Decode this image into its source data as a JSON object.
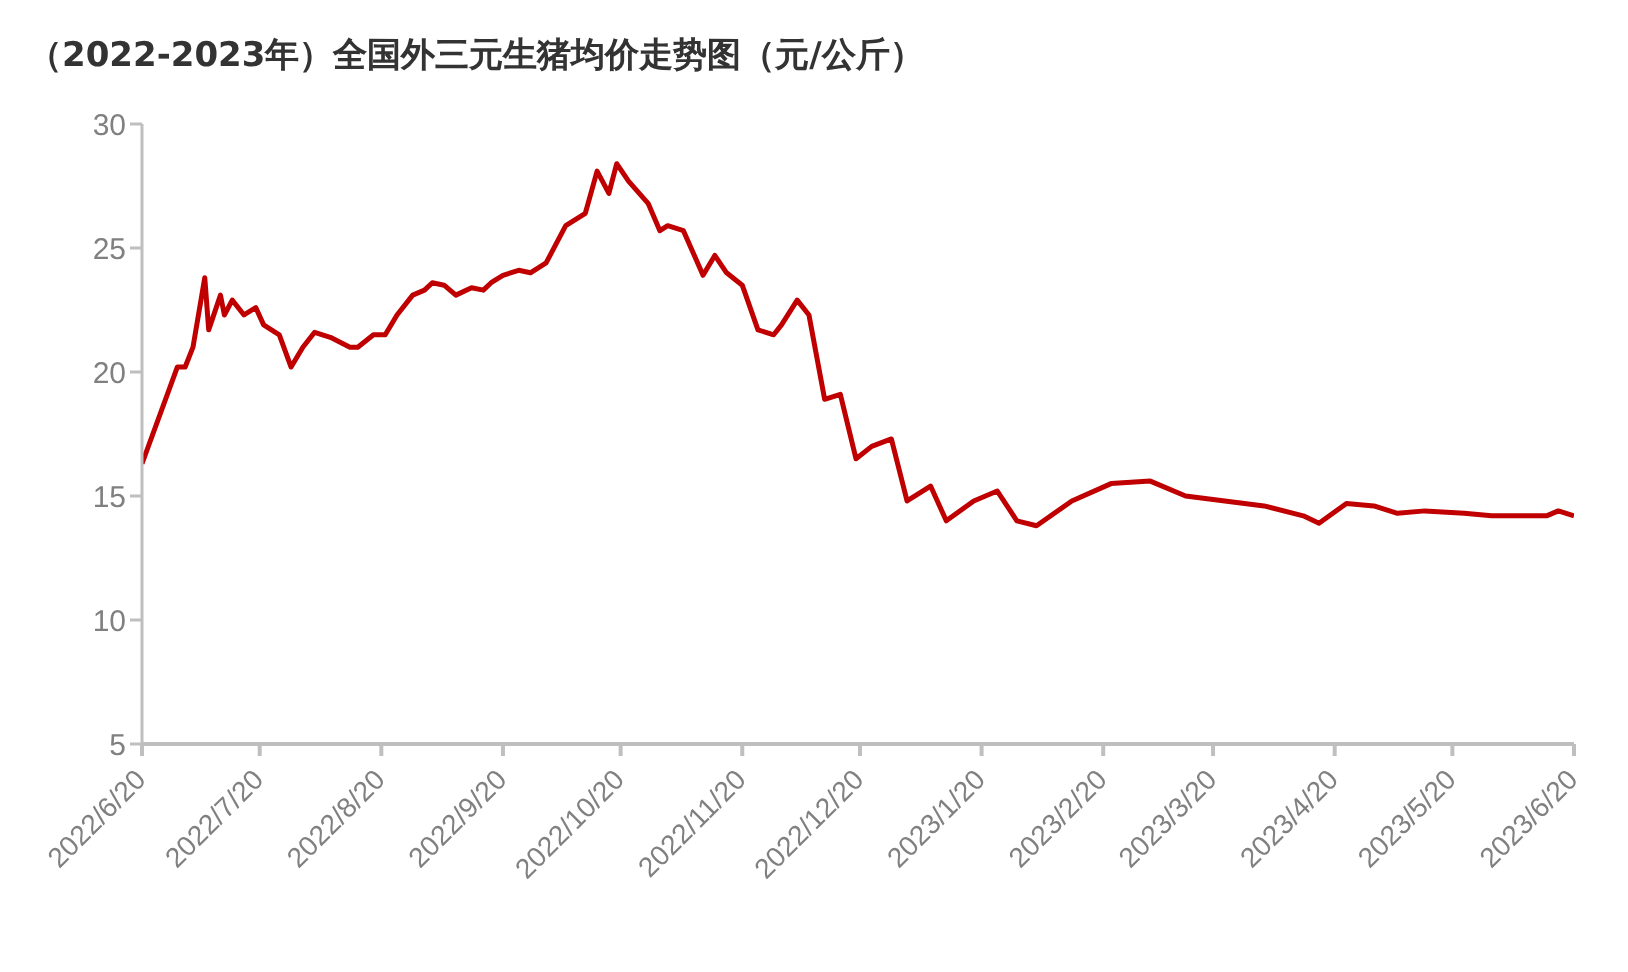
{
  "chart_data": {
    "type": "line",
    "title": "（2022-2023年）全国外三元生猪均价走势图（元/公斤）",
    "x": [
      "2022-06-20",
      "2022-06-29",
      "2022-07-01",
      "2022-07-03",
      "2022-07-06",
      "2022-07-07",
      "2022-07-10",
      "2022-07-11",
      "2022-07-13",
      "2022-07-16",
      "2022-07-19",
      "2022-07-21",
      "2022-07-25",
      "2022-07-28",
      "2022-07-31",
      "2022-08-03",
      "2022-08-07",
      "2022-08-12",
      "2022-08-14",
      "2022-08-18",
      "2022-08-21",
      "2022-08-24",
      "2022-08-28",
      "2022-08-31",
      "2022-09-02",
      "2022-09-05",
      "2022-09-08",
      "2022-09-12",
      "2022-09-15",
      "2022-09-17",
      "2022-09-20",
      "2022-09-24",
      "2022-09-27",
      "2022-10-01",
      "2022-10-06",
      "2022-10-11",
      "2022-10-14",
      "2022-10-17",
      "2022-10-19",
      "2022-10-22",
      "2022-10-27",
      "2022-10-30",
      "2022-11-01",
      "2022-11-05",
      "2022-11-10",
      "2022-11-13",
      "2022-11-16",
      "2022-11-20",
      "2022-11-24",
      "2022-11-28",
      "2022-11-30",
      "2022-12-04",
      "2022-12-07",
      "2022-12-11",
      "2022-12-15",
      "2022-12-19",
      "2022-12-23",
      "2022-12-28",
      "2023-01-01",
      "2023-01-07",
      "2023-01-11",
      "2023-01-18",
      "2023-01-24",
      "2023-01-29",
      "2023-02-03",
      "2023-02-12",
      "2023-02-22",
      "2023-03-04",
      "2023-03-13",
      "2023-03-23",
      "2023-04-02",
      "2023-04-12",
      "2023-04-16",
      "2023-04-23",
      "2023-04-30",
      "2023-05-06",
      "2023-05-13",
      "2023-05-23",
      "2023-05-30",
      "2023-06-06",
      "2023-06-13",
      "2023-06-16",
      "2023-06-20"
    ],
    "series": [
      {
        "color": "#c00000",
        "values": [
          16.3,
          20.2,
          20.2,
          21.0,
          23.8,
          21.7,
          23.1,
          22.3,
          22.9,
          22.3,
          22.6,
          21.9,
          21.5,
          20.2,
          21.0,
          21.6,
          21.4,
          21.0,
          21.0,
          21.5,
          21.5,
          22.3,
          23.1,
          23.3,
          23.6,
          23.5,
          23.1,
          23.4,
          23.3,
          23.6,
          23.9,
          24.1,
          24.0,
          24.4,
          25.9,
          26.4,
          28.1,
          27.2,
          28.4,
          27.7,
          26.8,
          25.7,
          25.9,
          25.7,
          23.9,
          24.7,
          24.0,
          23.5,
          21.7,
          21.5,
          21.9,
          22.9,
          22.3,
          18.9,
          19.1,
          16.5,
          17.0,
          17.3,
          14.8,
          15.4,
          14.0,
          14.8,
          15.2,
          14.0,
          13.8,
          14.8,
          15.5,
          15.6,
          15.0,
          14.8,
          14.6,
          14.2,
          13.9,
          14.7,
          14.6,
          14.3,
          14.4,
          14.3,
          14.2,
          14.2,
          14.2,
          14.4,
          14.2
        ]
      }
    ],
    "xlim": [
      "2022-06-20",
      "2023-06-20"
    ],
    "xticks": [
      {
        "value": "2022-06-20",
        "label": "2022/6/20"
      },
      {
        "value": "2022-07-20",
        "label": "2022/7/20"
      },
      {
        "value": "2022-08-20",
        "label": "2022/8/20"
      },
      {
        "value": "2022-09-20",
        "label": "2022/9/20"
      },
      {
        "value": "2022-10-20",
        "label": "2022/10/20"
      },
      {
        "value": "2022-11-20",
        "label": "2022/11/20"
      },
      {
        "value": "2022-12-20",
        "label": "2022/12/20"
      },
      {
        "value": "2023-01-20",
        "label": "2023/1/20"
      },
      {
        "value": "2023-02-20",
        "label": "2023/2/20"
      },
      {
        "value": "2023-03-20",
        "label": "2023/3/20"
      },
      {
        "value": "2023-04-20",
        "label": "2023/4/20"
      },
      {
        "value": "2023-05-20",
        "label": "2023/5/20"
      },
      {
        "value": "2023-06-20",
        "label": "2023/6/20"
      }
    ],
    "ylim": [
      5,
      30
    ],
    "yticks": [
      5,
      10,
      15,
      20,
      25,
      30
    ],
    "grid": false,
    "marker": "none",
    "line_style": "solid"
  }
}
